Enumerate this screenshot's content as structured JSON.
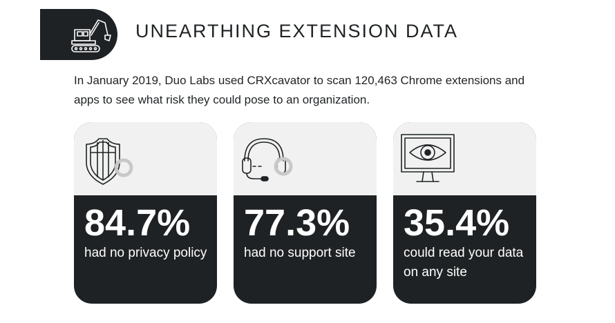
{
  "header": {
    "title": "UNEARTHING EXTENSION DATA",
    "icon": "excavator-icon"
  },
  "intro": {
    "text": "In January 2019, Duo Labs used CRXcavator to scan 120,463 Chrome extensions and apps to see what risk they could pose to an organization."
  },
  "cards": [
    {
      "stat": "84.7%",
      "label": "had no privacy policy",
      "icon": "shield-icon"
    },
    {
      "stat": "77.3%",
      "label": "had no support site",
      "icon": "headset-icon"
    },
    {
      "stat": "35.4%",
      "label": "could read your data on any site",
      "icon": "eye-monitor-icon"
    }
  ],
  "colors": {
    "dark": "#1f2224",
    "light_panel": "#f1f1f1",
    "accent_gray": "#c8c8c8"
  }
}
